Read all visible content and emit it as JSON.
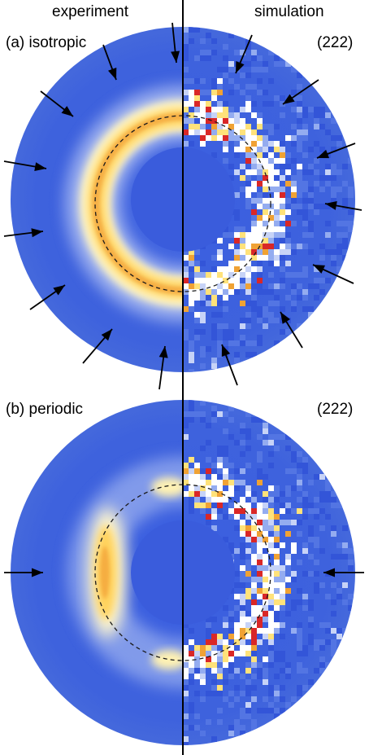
{
  "column_headers": {
    "left": "experiment",
    "right": "simulation"
  },
  "panels": [
    {
      "id": "a",
      "label": "(a) isotropic",
      "reflection": "(222)",
      "ring_type": "full",
      "arrow_layout": "around"
    },
    {
      "id": "b",
      "label": "(b) periodic",
      "reflection": "(222)",
      "ring_type": "two-lobes",
      "arrow_layout": "sides"
    }
  ],
  "colors": {
    "background": "#3b5fde",
    "ring_glow": "#ffffff",
    "ring_yellow": "#ffe27a",
    "ring_orange": "#f0a234",
    "hot_pixel": "#d92727",
    "divider": "#000000"
  }
}
